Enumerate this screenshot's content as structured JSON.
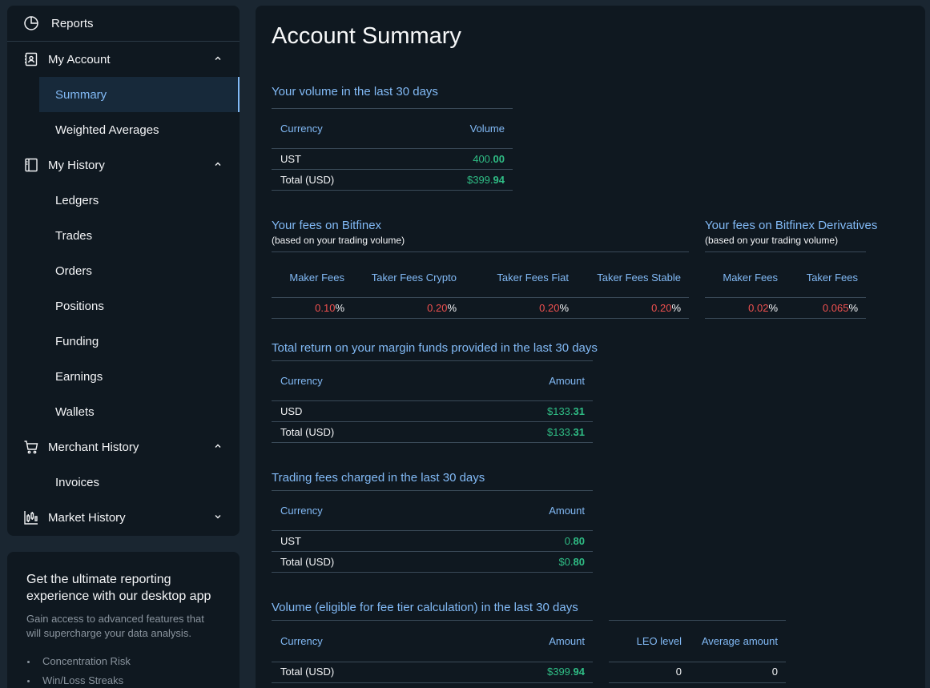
{
  "sidebar": {
    "reports": "Reports",
    "my_account": "My Account",
    "summary": "Summary",
    "weighted_averages": "Weighted Averages",
    "my_history": "My History",
    "history_items": [
      "Ledgers",
      "Trades",
      "Orders",
      "Positions",
      "Funding",
      "Earnings",
      "Wallets"
    ],
    "merchant_history": "Merchant History",
    "invoices": "Invoices",
    "market_history": "Market History"
  },
  "promo": {
    "title": "Get the ultimate reporting experience with our desktop app",
    "text": "Gain access to advanced features that will supercharge your data analysis.",
    "features": [
      "Concentration Risk",
      "Win/Loss Streaks"
    ]
  },
  "main": {
    "title": "Account Summary",
    "volume": {
      "title": "Your volume in the last 30 days",
      "col_currency": "Currency",
      "col_volume": "Volume",
      "rows": [
        {
          "label": "UST",
          "int": "400.",
          "dec": "00"
        },
        {
          "label": "Total (USD)",
          "int": "$399.",
          "dec": "94"
        }
      ]
    },
    "fees": {
      "title": "Your fees on Bitfinex",
      "subtitle": "(based on your trading volume)",
      "headers": [
        "Maker Fees",
        "Taker Fees Crypto",
        "Taker Fees Fiat",
        "Taker Fees Stable"
      ],
      "values": [
        "0.10",
        "0.20",
        "0.20",
        "0.20"
      ],
      "pct": "%"
    },
    "deriv_fees": {
      "title": "Your fees on Bitfinex Derivatives",
      "subtitle": "(based on your trading volume)",
      "headers": [
        "Maker Fees",
        "Taker Fees"
      ],
      "values": [
        "0.02",
        "0.065"
      ],
      "pct": "%"
    },
    "margin": {
      "title": "Total return on your margin funds provided in the last 30 days",
      "col_currency": "Currency",
      "col_amount": "Amount",
      "rows": [
        {
          "label": "USD",
          "int": "$133.",
          "dec": "31"
        },
        {
          "label": "Total (USD)",
          "int": "$133.",
          "dec": "31"
        }
      ]
    },
    "trading_fees": {
      "title": "Trading fees charged in the last 30 days",
      "col_currency": "Currency",
      "col_amount": "Amount",
      "rows": [
        {
          "label": "UST",
          "int": "0.",
          "dec": "80"
        },
        {
          "label": "Total (USD)",
          "int": "$0.",
          "dec": "80"
        }
      ]
    },
    "eligible": {
      "title": "Volume (eligible for fee tier calculation) in the last 30 days",
      "col_currency": "Currency",
      "col_amount": "Amount",
      "row_label": "Total (USD)",
      "row_int": "$399.",
      "row_dec": "94",
      "col_leo": "LEO level",
      "col_avg": "Average amount",
      "leo_value": "0",
      "avg_value": "0"
    }
  }
}
